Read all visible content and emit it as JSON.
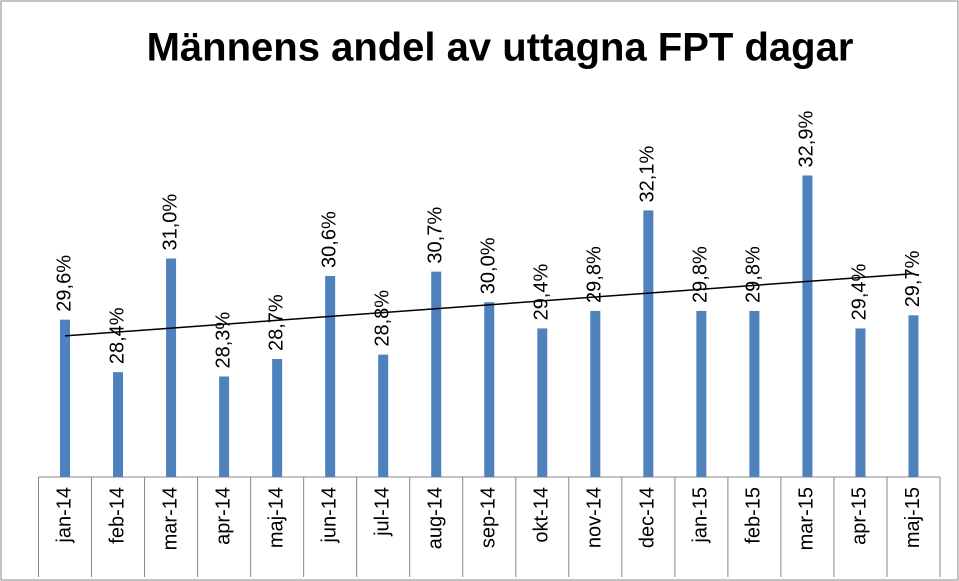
{
  "chart_data": {
    "type": "bar",
    "title": "Männens andel av uttagna FPT dagar",
    "categories": [
      "jan-14",
      "feb-14",
      "mar-14",
      "apr-14",
      "maj-14",
      "jun-14",
      "jul-14",
      "aug-14",
      "sep-14",
      "okt-14",
      "nov-14",
      "dec-14",
      "jan-15",
      "feb-15",
      "mar-15",
      "apr-15",
      "maj-15"
    ],
    "values": [
      29.6,
      28.4,
      31.0,
      28.3,
      28.7,
      30.6,
      28.8,
      30.7,
      30.0,
      29.4,
      29.8,
      32.1,
      29.8,
      29.8,
      32.9,
      29.4,
      29.7
    ],
    "value_labels": [
      "29,6%",
      "28,4%",
      "31,0%",
      "28,3%",
      "28,7%",
      "30,6%",
      "28,8%",
      "30,7%",
      "30,0%",
      "29,4%",
      "29,8%",
      "32,1%",
      "29,8%",
      "29,8%",
      "32,9%",
      "29,4%",
      "29,7%"
    ],
    "color": "#4f81bd",
    "ylim": [
      26,
      36
    ],
    "trendline": true,
    "trendline_color": "#000000"
  }
}
